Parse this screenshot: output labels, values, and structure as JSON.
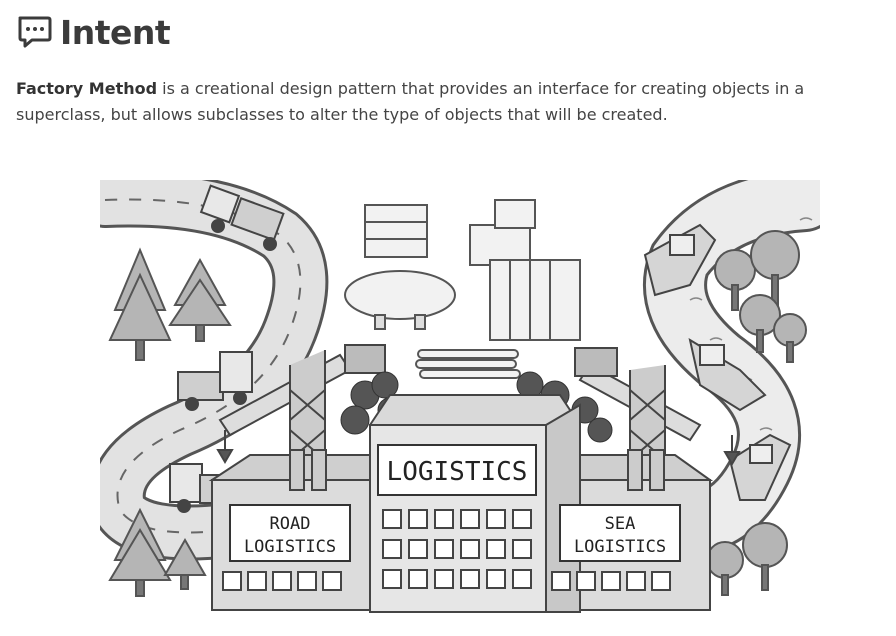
{
  "section": {
    "title": "Intent",
    "intro_bold": "Factory Method",
    "intro_rest": " is a creational design pattern that provides an interface for creating objects in a superclass, but allows subclasses to alter the type of objects that will be created."
  },
  "illustration": {
    "main_sign": "LOGISTICS",
    "road_sign_line1": "ROAD",
    "road_sign_line2": "LOGISTICS",
    "sea_sign_line1": "SEA",
    "sea_sign_line2": "LOGISTICS"
  },
  "icons": {
    "heading_icon": "speech-bubble-icon"
  }
}
